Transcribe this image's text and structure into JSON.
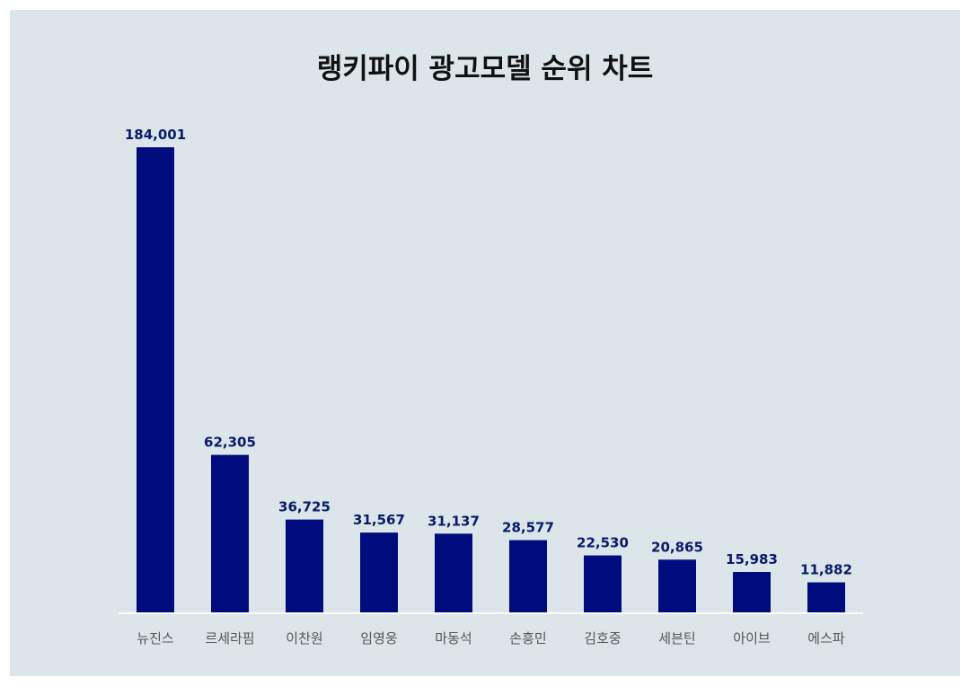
{
  "chart_data": {
    "type": "bar",
    "title": "랭키파이 광고모델 순위 차트",
    "categories": [
      "뉴진스",
      "르세라핌",
      "이찬원",
      "임영웅",
      "마동석",
      "손흥민",
      "김호중",
      "세븐틴",
      "아이브",
      "에스파"
    ],
    "values": [
      184001,
      62305,
      36725,
      31567,
      31137,
      28577,
      22530,
      20865,
      15983,
      11882
    ],
    "value_labels": [
      "184,001",
      "62,305",
      "36,725",
      "31,567",
      "31,137",
      "28,577",
      "22,530",
      "20,865",
      "15,983",
      "11,882"
    ],
    "xlabel": "",
    "ylabel": "",
    "ylim": [
      0,
      184001
    ],
    "grid": false,
    "legend": "none",
    "colors": {
      "bar": "#000c7d",
      "background": "#dce6ea",
      "axis_line": "#ffffff",
      "value_label": "#0a1a6b",
      "category_label": "#555555"
    }
  }
}
